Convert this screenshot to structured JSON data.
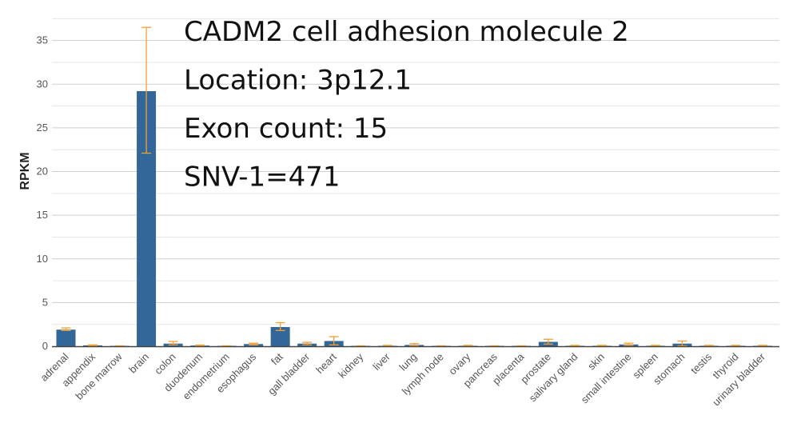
{
  "chart_data": {
    "type": "bar",
    "title": "",
    "xlabel": "",
    "ylabel": "RPKM",
    "ylim": [
      0,
      40
    ],
    "yticks": [
      0,
      5,
      10,
      15,
      20,
      25,
      30,
      35,
      40
    ],
    "grid": true,
    "colors": {
      "bar": "#336699",
      "error_bar": "#f5a030",
      "grid": "#d9d9d9",
      "axis": "#444444"
    },
    "annotations": [
      "CADM2 cell adhesion molecule 2",
      "Location: 3p12.1",
      "Exon count: 15",
      "SNV-1=471"
    ],
    "categories": [
      "adrenal",
      "appendix",
      "bone marrow",
      "brain",
      "colon",
      "duodenum",
      "endometrium",
      "esophagus",
      "fat",
      "gall bladder",
      "heart",
      "kidney",
      "liver",
      "lung",
      "lymph node",
      "ovary",
      "pancreas",
      "placenta",
      "prostate",
      "salivary gland",
      "skin",
      "small intestine",
      "spleen",
      "stomach",
      "testis",
      "thyroid",
      "urinary bladder"
    ],
    "values": [
      1.9,
      0.1,
      0.02,
      29.2,
      0.3,
      0.08,
      0.02,
      0.25,
      2.2,
      0.3,
      0.6,
      0.02,
      0.05,
      0.15,
      0.02,
      0.05,
      0.02,
      0.02,
      0.5,
      0.05,
      0.05,
      0.2,
      0.05,
      0.3,
      0.05,
      0.05,
      0.05
    ],
    "error_low": [
      1.8,
      0.05,
      0.0,
      22.1,
      0.15,
      0.03,
      0.0,
      0.15,
      1.8,
      0.15,
      0.15,
      0.0,
      0.02,
      0.05,
      0.0,
      0.02,
      0.0,
      0.0,
      0.25,
      0.02,
      0.02,
      0.1,
      0.02,
      0.05,
      0.02,
      0.02,
      0.02
    ],
    "error_high": [
      2.1,
      0.15,
      0.05,
      36.5,
      0.55,
      0.13,
      0.05,
      0.35,
      2.7,
      0.45,
      1.1,
      0.05,
      0.1,
      0.3,
      0.05,
      0.1,
      0.05,
      0.05,
      0.8,
      0.1,
      0.1,
      0.35,
      0.1,
      0.6,
      0.1,
      0.1,
      0.1
    ]
  }
}
